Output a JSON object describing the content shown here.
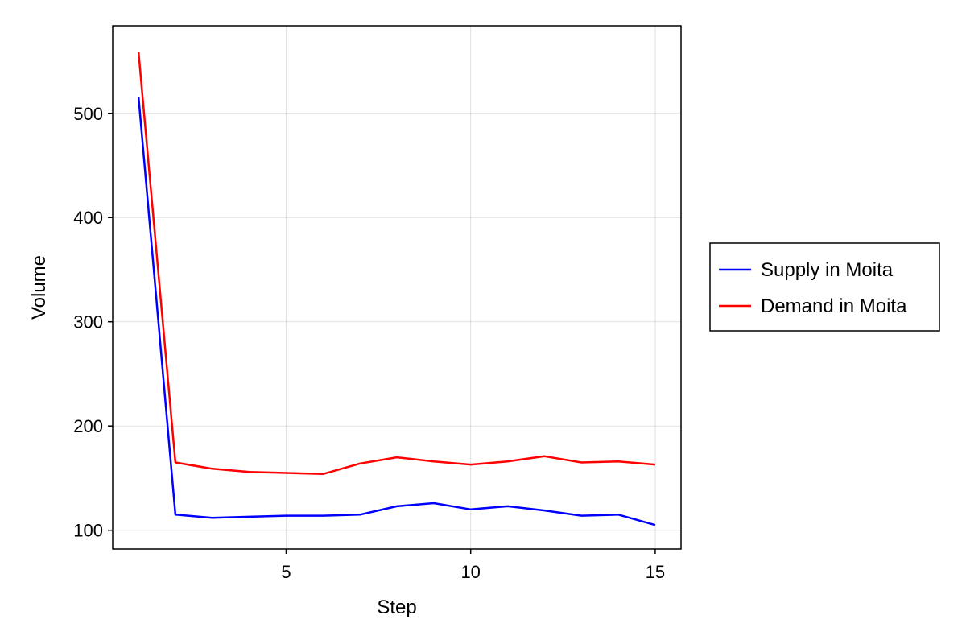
{
  "chart_data": {
    "type": "line",
    "title": "",
    "xlabel": "Step",
    "ylabel": "Volume",
    "xlim": [
      0.3,
      15.7
    ],
    "ylim": [
      82,
      584
    ],
    "xticks": [
      5,
      10,
      15
    ],
    "yticks": [
      100,
      200,
      300,
      400,
      500
    ],
    "grid": true,
    "legend_position": "outside-right",
    "x": [
      1,
      2,
      3,
      4,
      5,
      6,
      7,
      8,
      9,
      10,
      11,
      12,
      13,
      14,
      15
    ],
    "series": [
      {
        "name": "Supply in Moita",
        "color": "#0000ff",
        "values": [
          516,
          115,
          112,
          113,
          114,
          114,
          115,
          123,
          126,
          120,
          123,
          119,
          114,
          115,
          105
        ]
      },
      {
        "name": "Demand in Moita",
        "color": "#ff0000",
        "values": [
          559,
          165,
          159,
          156,
          155,
          154,
          164,
          170,
          166,
          163,
          166,
          171,
          165,
          166,
          163
        ]
      }
    ]
  }
}
